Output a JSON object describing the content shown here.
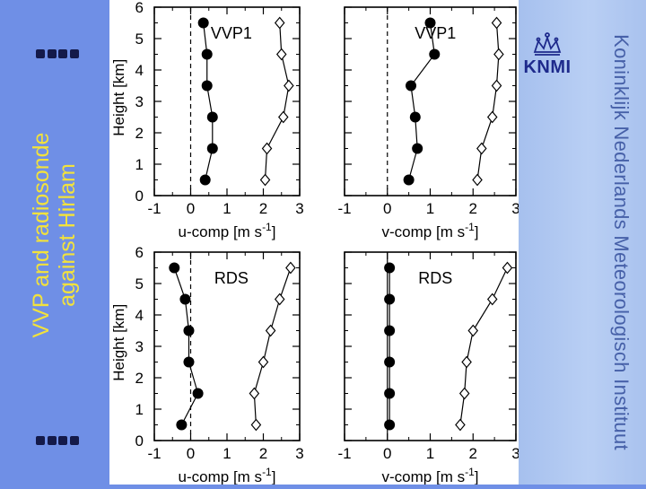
{
  "slide": {
    "title_line1": "VVP and radiosonde",
    "title_line2": "against Hirlam",
    "logo_text": "KNMI",
    "institute": "Koninklijk Nederlands Meteorologisch Instituut"
  },
  "chart_data": [
    {
      "type": "line",
      "panel": "top-left",
      "label": "VVP1",
      "xlabel": "u-comp [m s-1]",
      "ylabel": "Height [km]",
      "xlim": [
        -1,
        3
      ],
      "ylim": [
        0,
        6
      ],
      "xticks": [
        -1,
        0,
        1,
        2,
        3
      ],
      "yticks": [
        0,
        1,
        2,
        3,
        4,
        5,
        6
      ],
      "zero_line": "dashed",
      "series": [
        {
          "marker": "filled-circle",
          "points": [
            [
              0.4,
              0.5
            ],
            [
              0.6,
              1.5
            ],
            [
              0.6,
              2.5
            ],
            [
              0.45,
              3.5
            ],
            [
              0.45,
              4.5
            ],
            [
              0.35,
              5.5
            ]
          ]
        },
        {
          "marker": "open-diamond",
          "points": [
            [
              2.05,
              0.5
            ],
            [
              2.1,
              1.5
            ],
            [
              2.55,
              2.5
            ],
            [
              2.7,
              3.5
            ],
            [
              2.5,
              4.5
            ],
            [
              2.45,
              5.5
            ]
          ]
        }
      ]
    },
    {
      "type": "line",
      "panel": "top-right",
      "label": "VVP1",
      "xlabel": "v-comp [m s-1]",
      "ylabel": "",
      "xlim": [
        -1,
        3
      ],
      "ylim": [
        0,
        6
      ],
      "xticks": [
        -1,
        0,
        1,
        2,
        3
      ],
      "yticks": [
        0,
        1,
        2,
        3,
        4,
        5,
        6
      ],
      "zero_line": "dashed",
      "series": [
        {
          "marker": "filled-circle",
          "points": [
            [
              0.5,
              0.5
            ],
            [
              0.7,
              1.5
            ],
            [
              0.65,
              2.5
            ],
            [
              0.55,
              3.5
            ],
            [
              1.1,
              4.5
            ],
            [
              1.0,
              5.5
            ]
          ]
        },
        {
          "marker": "open-diamond",
          "points": [
            [
              2.1,
              0.5
            ],
            [
              2.2,
              1.5
            ],
            [
              2.45,
              2.5
            ],
            [
              2.55,
              3.5
            ],
            [
              2.6,
              4.5
            ],
            [
              2.55,
              5.5
            ]
          ]
        }
      ]
    },
    {
      "type": "line",
      "panel": "bottom-left",
      "label": "RDS",
      "xlabel": "u-comp [m s-1]",
      "ylabel": "Height [km]",
      "xlim": [
        -1,
        3
      ],
      "ylim": [
        0,
        6
      ],
      "xticks": [
        -1,
        0,
        1,
        2,
        3
      ],
      "yticks": [
        0,
        1,
        2,
        3,
        4,
        5,
        6
      ],
      "zero_line": "dashed",
      "series": [
        {
          "marker": "filled-circle",
          "points": [
            [
              -0.25,
              0.5
            ],
            [
              0.2,
              1.5
            ],
            [
              -0.05,
              2.5
            ],
            [
              -0.05,
              3.5
            ],
            [
              -0.15,
              4.5
            ],
            [
              -0.45,
              5.5
            ]
          ]
        },
        {
          "marker": "open-diamond",
          "points": [
            [
              1.8,
              0.5
            ],
            [
              1.75,
              1.5
            ],
            [
              2.0,
              2.5
            ],
            [
              2.2,
              3.5
            ],
            [
              2.45,
              4.5
            ],
            [
              2.75,
              5.5
            ]
          ]
        }
      ]
    },
    {
      "type": "line",
      "panel": "bottom-right",
      "label": "RDS",
      "xlabel": "v-comp [m s-1]",
      "ylabel": "",
      "xlim": [
        -1,
        3
      ],
      "ylim": [
        0,
        6
      ],
      "xticks": [
        -1,
        0,
        1,
        2,
        3
      ],
      "yticks": [
        0,
        1,
        2,
        3,
        4,
        5,
        6
      ],
      "zero_line": "solid",
      "series": [
        {
          "marker": "filled-circle",
          "points": [
            [
              0.05,
              0.5
            ],
            [
              0.05,
              1.5
            ],
            [
              0.05,
              2.5
            ],
            [
              0.05,
              3.5
            ],
            [
              0.05,
              4.5
            ],
            [
              0.05,
              5.5
            ]
          ]
        },
        {
          "marker": "open-diamond",
          "points": [
            [
              1.7,
              0.5
            ],
            [
              1.8,
              1.5
            ],
            [
              1.85,
              2.5
            ],
            [
              2.0,
              3.5
            ],
            [
              2.45,
              4.5
            ],
            [
              2.8,
              5.5
            ]
          ]
        }
      ]
    }
  ]
}
